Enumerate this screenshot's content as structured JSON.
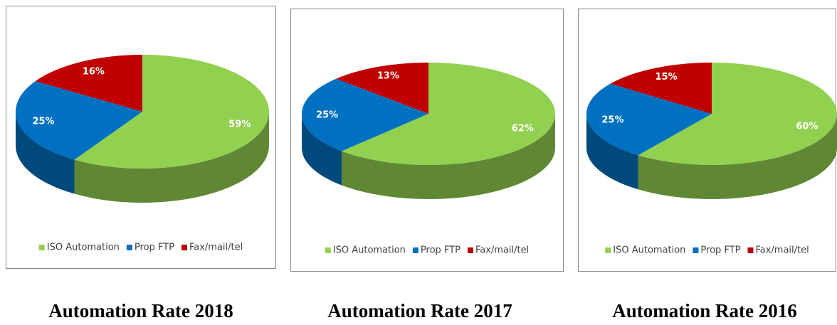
{
  "chart_data": [
    {
      "type": "pie",
      "title": "Automation Rate 2018",
      "categories": [
        "ISO Automation",
        "Prop FTP",
        "Fax/mail/tel"
      ],
      "values": [
        59,
        25,
        16
      ],
      "value_labels": [
        "59%",
        "25%",
        "16%"
      ],
      "colors": [
        "#92d050",
        "#0070c0",
        "#c00000"
      ],
      "legend": "bottom"
    },
    {
      "type": "pie",
      "title": "Automation Rate 2017",
      "categories": [
        "ISO Automation",
        "Prop FTP",
        "Fax/mail/tel"
      ],
      "values": [
        62,
        25,
        13
      ],
      "value_labels": [
        "62%",
        "25%",
        "13%"
      ],
      "colors": [
        "#92d050",
        "#0070c0",
        "#c00000"
      ],
      "legend": "bottom"
    },
    {
      "type": "pie",
      "title": "Automation Rate 2016",
      "categories": [
        "ISO Automation",
        "Prop FTP",
        "Fax/mail/tel"
      ],
      "values": [
        60,
        25,
        15
      ],
      "value_labels": [
        "60%",
        "25%",
        "15%"
      ],
      "colors": [
        "#92d050",
        "#0070c0",
        "#c00000"
      ],
      "legend": "bottom"
    }
  ]
}
